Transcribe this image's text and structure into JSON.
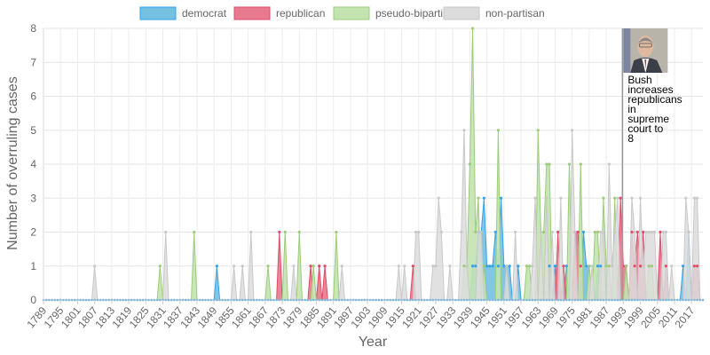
{
  "chart_data": {
    "type": "area",
    "xlabel": "Year",
    "ylabel": "Number of overruling cases",
    "ylim": [
      0,
      8
    ],
    "yticks": [
      0,
      1,
      2,
      3,
      4,
      5,
      6,
      7,
      8
    ],
    "x_start": 1789,
    "x_end": 2021,
    "xtick_labels": [
      "1789",
      "1795",
      "1801",
      "1807",
      "1813",
      "1819",
      "1825",
      "1831",
      "1837",
      "1843",
      "1849",
      "1855",
      "1861",
      "1867",
      "1873",
      "1879",
      "1885",
      "1891",
      "1897",
      "1903",
      "1909",
      "1915",
      "1921",
      "1927",
      "1933",
      "1939",
      "1945",
      "1951",
      "1957",
      "1963",
      "1969",
      "1975",
      "1981",
      "1987",
      "1993",
      "1999",
      "2005",
      "2011",
      "2017"
    ],
    "grid": true,
    "legend_position": "top",
    "series": [
      {
        "name": "democrat",
        "color": "#74c0e0",
        "stroke": "#36a2eb",
        "points": [
          [
            1850,
            1
          ],
          [
            1940,
            1
          ],
          [
            1941,
            1
          ],
          [
            1942,
            2
          ],
          [
            1943,
            2
          ],
          [
            1944,
            3
          ],
          [
            1945,
            1
          ],
          [
            1946,
            1
          ],
          [
            1947,
            1
          ],
          [
            1948,
            2
          ],
          [
            1949,
            1
          ],
          [
            1950,
            3
          ],
          [
            1951,
            1
          ],
          [
            1952,
            1
          ],
          [
            1953,
            1
          ],
          [
            1956,
            1
          ],
          [
            1967,
            1
          ],
          [
            1969,
            1
          ],
          [
            1973,
            1
          ],
          [
            1979,
            2
          ],
          [
            1980,
            1
          ],
          [
            1981,
            1
          ],
          [
            1984,
            1
          ],
          [
            1985,
            1
          ],
          [
            2014,
            1
          ],
          [
            2016,
            2
          ]
        ]
      },
      {
        "name": "republican",
        "color": "#e77a8e",
        "stroke": "#e04c6a",
        "points": [
          [
            1872,
            2
          ],
          [
            1883,
            1
          ],
          [
            1886,
            1
          ],
          [
            1888,
            1
          ],
          [
            1919,
            1
          ],
          [
            1970,
            2
          ],
          [
            1972,
            1
          ],
          [
            1976,
            2
          ],
          [
            1977,
            2
          ],
          [
            1978,
            1
          ],
          [
            1992,
            3
          ],
          [
            1993,
            1
          ],
          [
            1994,
            1
          ],
          [
            1996,
            2
          ],
          [
            1997,
            1
          ],
          [
            1998,
            2
          ],
          [
            1999,
            1
          ],
          [
            2000,
            2
          ],
          [
            2006,
            2
          ],
          [
            2008,
            1
          ],
          [
            2018,
            1
          ],
          [
            2019,
            1
          ]
        ]
      },
      {
        "name": "pseudo-bipartisan",
        "color": "#c3e3b1",
        "stroke": "#9ccc7a",
        "points": [
          [
            1830,
            1
          ],
          [
            1842,
            2
          ],
          [
            1868,
            1
          ],
          [
            1874,
            2
          ],
          [
            1879,
            2
          ],
          [
            1884,
            1
          ],
          [
            1892,
            2
          ],
          [
            1937,
            1
          ],
          [
            1938,
            1
          ],
          [
            1939,
            4
          ],
          [
            1940,
            8
          ],
          [
            1941,
            2
          ],
          [
            1942,
            3
          ],
          [
            1944,
            1
          ],
          [
            1949,
            5
          ],
          [
            1959,
            1
          ],
          [
            1960,
            1
          ],
          [
            1963,
            5
          ],
          [
            1964,
            2
          ],
          [
            1965,
            2
          ],
          [
            1966,
            4
          ],
          [
            1967,
            4
          ],
          [
            1974,
            4
          ],
          [
            1978,
            4
          ],
          [
            1981,
            1
          ],
          [
            1983,
            2
          ],
          [
            1984,
            2
          ],
          [
            1986,
            3
          ],
          [
            1987,
            1
          ],
          [
            1988,
            1
          ],
          [
            1990,
            3
          ],
          [
            1994,
            1
          ],
          [
            2002,
            1
          ],
          [
            2003,
            1
          ]
        ]
      },
      {
        "name": "non-partisan",
        "color": "#dcdcdc",
        "stroke": "#c9c9c9",
        "points": [
          [
            1807,
            1
          ],
          [
            1832,
            2
          ],
          [
            1856,
            1
          ],
          [
            1859,
            1
          ],
          [
            1862,
            2
          ],
          [
            1877,
            1
          ],
          [
            1894,
            1
          ],
          [
            1914,
            1
          ],
          [
            1916,
            1
          ],
          [
            1920,
            2
          ],
          [
            1921,
            2
          ],
          [
            1926,
            1
          ],
          [
            1927,
            1
          ],
          [
            1928,
            3
          ],
          [
            1929,
            2
          ],
          [
            1932,
            1
          ],
          [
            1936,
            2
          ],
          [
            1937,
            5
          ],
          [
            1938,
            1
          ],
          [
            1942,
            2
          ],
          [
            1943,
            2
          ],
          [
            1952,
            1
          ],
          [
            1955,
            2
          ],
          [
            1961,
            1
          ],
          [
            1962,
            3
          ],
          [
            1964,
            2
          ],
          [
            1966,
            3
          ],
          [
            1968,
            2
          ],
          [
            1971,
            3
          ],
          [
            1975,
            5
          ],
          [
            1976,
            2
          ],
          [
            1982,
            1
          ],
          [
            1985,
            2
          ],
          [
            1986,
            2
          ],
          [
            1988,
            4
          ],
          [
            1989,
            1
          ],
          [
            1990,
            2
          ],
          [
            1991,
            3
          ],
          [
            1996,
            3
          ],
          [
            1997,
            2
          ],
          [
            1999,
            3
          ],
          [
            2000,
            1
          ],
          [
            2001,
            2
          ],
          [
            2002,
            2
          ],
          [
            2003,
            2
          ],
          [
            2004,
            2
          ],
          [
            2007,
            2
          ],
          [
            2008,
            2
          ],
          [
            2010,
            1
          ],
          [
            2015,
            3
          ],
          [
            2016,
            2
          ],
          [
            2018,
            3
          ],
          [
            2019,
            3
          ]
        ]
      }
    ],
    "annotation": {
      "year": 1993,
      "lines": [
        "Bush",
        "increases",
        "republicans",
        "in",
        "supreme",
        "court to",
        "8"
      ]
    }
  }
}
